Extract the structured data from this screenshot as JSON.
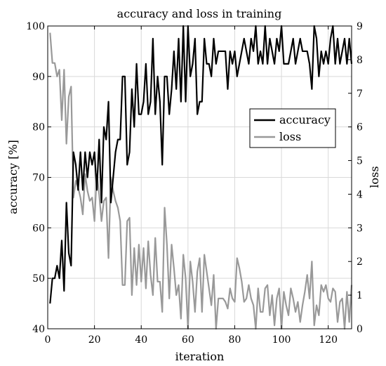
{
  "chart_data": {
    "type": "line",
    "title": "accuracy and loss in training",
    "xlabel": "iteration",
    "ylabel_left": "accuracy [%]",
    "ylabel_right": "loss",
    "xlim": [
      0,
      130
    ],
    "ylim_left": [
      40,
      100
    ],
    "ylim_right": [
      0,
      9
    ],
    "xticks": [
      0,
      20,
      40,
      60,
      80,
      100,
      120
    ],
    "yticks_left": [
      40,
      50,
      60,
      70,
      80,
      90,
      100
    ],
    "yticks_right": [
      0,
      1,
      2,
      3,
      4,
      5,
      6,
      7,
      8,
      9
    ],
    "grid": true,
    "legend_position": "center-right",
    "series": [
      {
        "name": "accuracy",
        "axis": "left",
        "color": "#000000",
        "x": [
          1,
          2,
          3,
          4,
          5,
          6,
          7,
          8,
          9,
          10,
          11,
          12,
          13,
          14,
          15,
          16,
          17,
          18,
          19,
          20,
          21,
          22,
          23,
          24,
          25,
          26,
          27,
          28,
          29,
          30,
          31,
          32,
          33,
          34,
          35,
          36,
          37,
          38,
          39,
          40,
          41,
          42,
          43,
          44,
          45,
          46,
          47,
          48,
          49,
          50,
          51,
          52,
          53,
          54,
          55,
          56,
          57,
          58,
          59,
          60,
          61,
          62,
          63,
          64,
          65,
          66,
          67,
          68,
          69,
          70,
          71,
          72,
          73,
          74,
          75,
          76,
          77,
          78,
          79,
          80,
          81,
          82,
          83,
          84,
          85,
          86,
          87,
          88,
          89,
          90,
          91,
          92,
          93,
          94,
          95,
          96,
          97,
          98,
          99,
          100,
          101,
          102,
          103,
          104,
          105,
          106,
          107,
          108,
          109,
          110,
          111,
          112,
          113,
          114,
          115,
          116,
          117,
          118,
          119,
          120,
          121,
          122,
          123,
          124,
          125,
          126,
          127,
          128,
          129,
          130
        ],
        "values": [
          45,
          50,
          50,
          52.5,
          50,
          57.5,
          47.5,
          65,
          55,
          52.5,
          75,
          72.5,
          67.5,
          75,
          67.5,
          75,
          70,
          75,
          72.5,
          75,
          67.5,
          77.5,
          65,
          80,
          77.5,
          85,
          65,
          70,
          75,
          77.5,
          77.5,
          90,
          90,
          72.5,
          75,
          87.5,
          80,
          92.5,
          82.5,
          82.5,
          85,
          92.5,
          82.5,
          85,
          97.5,
          82.5,
          90,
          85,
          72.5,
          90,
          90,
          82.5,
          87.5,
          95,
          87.5,
          97.5,
          85,
          100,
          85,
          100,
          90,
          92.5,
          97.5,
          82.5,
          85,
          85,
          97.5,
          92.5,
          92.5,
          90,
          97.5,
          92.5,
          95,
          95,
          95,
          95,
          87.5,
          95,
          92.5,
          95,
          90,
          92.5,
          95,
          97.5,
          95,
          92.5,
          97.5,
          95,
          100,
          92.5,
          95,
          92.5,
          100,
          92.5,
          97.5,
          95,
          92.5,
          97.5,
          95,
          100,
          92.5,
          92.5,
          92.5,
          95,
          97.5,
          92.5,
          95,
          97.5,
          95,
          95,
          95,
          92.5,
          87.5,
          100,
          97.5,
          90,
          95,
          92.5,
          95,
          92.5,
          97.5,
          100,
          92.5,
          97.5,
          92.5,
          95,
          97.5,
          92.5,
          97.5,
          92.5
        ]
      },
      {
        "name": "loss",
        "axis": "right",
        "color": "#999999",
        "x": [
          1,
          2,
          3,
          4,
          5,
          6,
          7,
          8,
          9,
          10,
          11,
          12,
          13,
          14,
          15,
          16,
          17,
          18,
          19,
          20,
          21,
          22,
          23,
          24,
          25,
          26,
          27,
          28,
          29,
          30,
          31,
          32,
          33,
          34,
          35,
          36,
          37,
          38,
          39,
          40,
          41,
          42,
          43,
          44,
          45,
          46,
          47,
          48,
          49,
          50,
          51,
          52,
          53,
          54,
          55,
          56,
          57,
          58,
          59,
          60,
          61,
          62,
          63,
          64,
          65,
          66,
          67,
          68,
          69,
          70,
          71,
          72,
          73,
          74,
          75,
          76,
          77,
          78,
          79,
          80,
          81,
          82,
          83,
          84,
          85,
          86,
          87,
          88,
          89,
          90,
          91,
          92,
          93,
          94,
          95,
          96,
          97,
          98,
          99,
          100,
          101,
          102,
          103,
          104,
          105,
          106,
          107,
          108,
          109,
          110,
          111,
          112,
          113,
          114,
          115,
          116,
          117,
          118,
          119,
          120,
          121,
          122,
          123,
          124,
          125,
          126,
          127,
          128,
          129,
          130
        ],
        "values": [
          8.8,
          7.9,
          7.9,
          7.5,
          7.7,
          6.2,
          7.7,
          5.5,
          6.9,
          7.2,
          3.9,
          4.4,
          4.2,
          3.9,
          3.4,
          4.6,
          4.1,
          3.8,
          3.9,
          3.2,
          4.6,
          4.0,
          3.2,
          3.8,
          3.9,
          2.1,
          4.5,
          4.1,
          3.8,
          3.6,
          3.2,
          1.3,
          1.3,
          3.2,
          3.3,
          1.0,
          2.4,
          1.3,
          2.5,
          1.4,
          2.4,
          1.2,
          2.6,
          1.6,
          1.0,
          2.7,
          1.4,
          1.4,
          0.5,
          3.6,
          2.5,
          0.9,
          2.5,
          1.8,
          1.0,
          1.3,
          0.3,
          2.2,
          1.5,
          0.0,
          2.0,
          1.4,
          0.5,
          1.7,
          2.1,
          0.5,
          2.2,
          1.7,
          1.2,
          0.7,
          1.6,
          0.0,
          0.9,
          0.9,
          0.9,
          0.8,
          0.6,
          1.2,
          0.9,
          0.8,
          2.1,
          1.8,
          1.4,
          0.8,
          0.9,
          1.3,
          0.9,
          0.7,
          0.0,
          1.2,
          0.5,
          0.5,
          1.2,
          1.3,
          0.4,
          1.0,
          0.1,
          0.9,
          1.2,
          0.0,
          1.1,
          0.7,
          0.4,
          1.2,
          0.9,
          0.5,
          0.8,
          0.2,
          0.7,
          1.1,
          1.6,
          0.9,
          2.0,
          0.1,
          0.7,
          0.4,
          1.3,
          1.1,
          1.3,
          0.9,
          0.8,
          1.2,
          1.1,
          0.2,
          0.8,
          0.9,
          0.0,
          1.1,
          0.2,
          1.3
        ]
      }
    ]
  }
}
